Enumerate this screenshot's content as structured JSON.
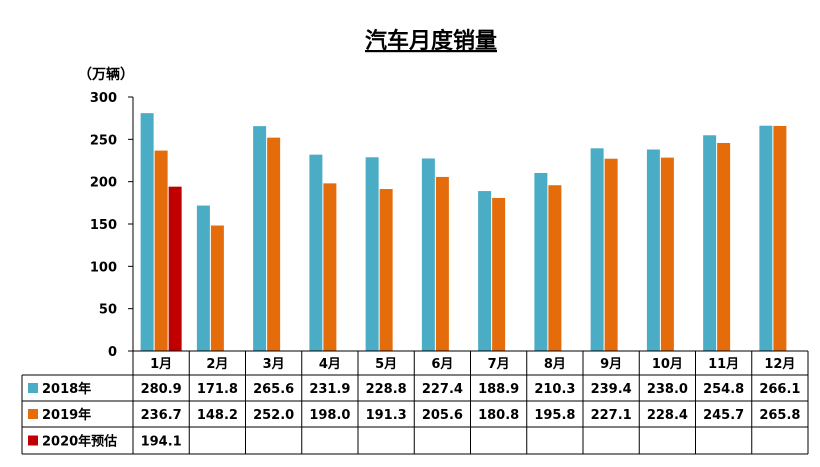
{
  "chart_data": {
    "type": "bar",
    "title": "汽车月度销量",
    "unit_label": "（万辆）",
    "ylim": [
      0,
      300
    ],
    "y_ticks": [
      "300",
      "250",
      "200",
      "150",
      "100",
      "50",
      "0"
    ],
    "y_tick_values": [
      300,
      250,
      200,
      150,
      100,
      50,
      0
    ],
    "categories": [
      "1月",
      "2月",
      "3月",
      "4月",
      "5月",
      "6月",
      "7月",
      "8月",
      "9月",
      "10月",
      "11月",
      "12月"
    ],
    "grid": false,
    "legend": "data-table",
    "series": [
      {
        "name": "2018年",
        "color": "#4bacc6",
        "values": [
          280.9,
          171.8,
          265.6,
          231.9,
          228.8,
          227.4,
          188.9,
          210.3,
          239.4,
          238.0,
          254.8,
          266.1
        ],
        "labels": [
          "280.9",
          "171.8",
          "265.6",
          "231.9",
          "228.8",
          "227.4",
          "188.9",
          "210.3",
          "239.4",
          "238.0",
          "254.8",
          "266.1"
        ]
      },
      {
        "name": "2019年",
        "color": "#e46c0a",
        "values": [
          236.7,
          148.2,
          252.0,
          198.0,
          191.3,
          205.6,
          180.8,
          195.8,
          227.1,
          228.4,
          245.7,
          265.8
        ],
        "labels": [
          "236.7",
          "148.2",
          "252.0",
          "198.0",
          "191.3",
          "205.6",
          "180.8",
          "195.8",
          "227.1",
          "228.4",
          "245.7",
          "265.8"
        ]
      },
      {
        "name": "2020年预估",
        "color": "#c00000",
        "values": [
          194.1,
          null,
          null,
          null,
          null,
          null,
          null,
          null,
          null,
          null,
          null,
          null
        ],
        "labels": [
          "194.1",
          "",
          "",
          "",
          "",
          "",
          "",
          "",
          "",
          "",
          "",
          ""
        ]
      }
    ]
  }
}
